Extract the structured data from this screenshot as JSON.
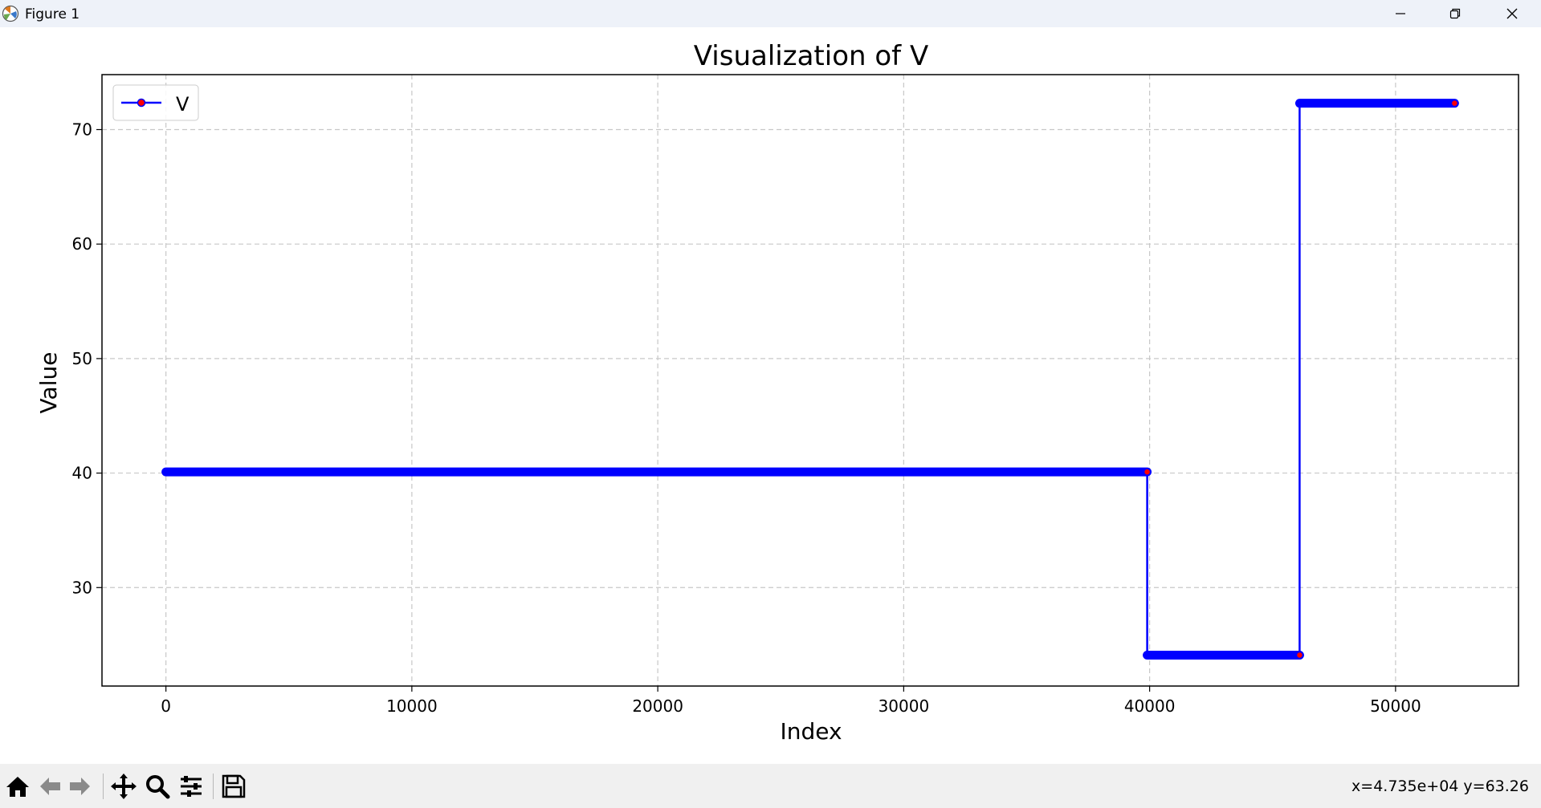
{
  "window": {
    "title": "Figure 1"
  },
  "colors": {
    "line": "#0000ff",
    "marker": "#ff0000",
    "grid": "#c8c8c8",
    "titlebar": "#eef2f9",
    "toolbar": "#f0f0f0"
  },
  "toolbar": {
    "buttons": [
      "home-icon",
      "back-arrow-icon",
      "forward-arrow-icon",
      "pan-icon",
      "zoom-icon",
      "configure-subplots-icon",
      "save-icon"
    ],
    "coords": "x=4.735e+04 y=63.26"
  },
  "chart_data": {
    "type": "line",
    "title": "Visualization of V",
    "xlabel": "Index",
    "ylabel": "Value",
    "xlim": [
      -2600,
      55000
    ],
    "ylim": [
      21.4,
      74.8
    ],
    "xticks": [
      0,
      10000,
      20000,
      30000,
      40000,
      50000
    ],
    "yticks": [
      30,
      40,
      50,
      60,
      70
    ],
    "grid": true,
    "legend_position": "upper-left",
    "series": [
      {
        "name": "V",
        "markers": true,
        "x": [
          0,
          39900,
          39900,
          46100,
          46100,
          52400
        ],
        "values": [
          40.1,
          40.1,
          24.1,
          24.1,
          72.3,
          72.3
        ]
      }
    ]
  }
}
